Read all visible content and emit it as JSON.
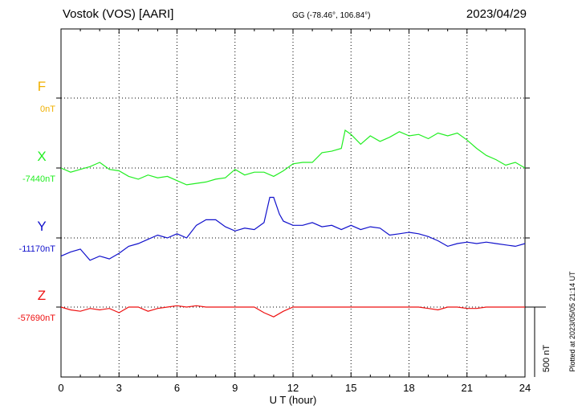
{
  "header": {
    "station": "Vostok (VOS)  [AARI]",
    "coords": "GG (-78.46°, 106.84°)",
    "date": "2023/04/29"
  },
  "side_note": "Plotted at 2023/05/05 21:14 UT",
  "scale_label": "500 nT",
  "chart_data": {
    "type": "line",
    "title": "",
    "xlabel": "U T (hour)",
    "xlim": [
      0,
      24
    ],
    "xticks": [
      "0",
      "3",
      "6",
      "9",
      "12",
      "15",
      "18",
      "21",
      "24"
    ],
    "scale_bar_nT": 500,
    "series": [
      {
        "name": "F",
        "baseline_label": "0nT",
        "color": "#f0b000",
        "values": []
      },
      {
        "name": "X",
        "baseline_label": "-7440nT",
        "color": "#22ee22",
        "values": [
          [
            0,
            -7440
          ],
          [
            0.5,
            -7470
          ],
          [
            1,
            -7450
          ],
          [
            1.5,
            -7430
          ],
          [
            2,
            -7400
          ],
          [
            2.5,
            -7450
          ],
          [
            3,
            -7460
          ],
          [
            3.5,
            -7500
          ],
          [
            4,
            -7520
          ],
          [
            4.5,
            -7490
          ],
          [
            5,
            -7510
          ],
          [
            5.5,
            -7500
          ],
          [
            6,
            -7530
          ],
          [
            6.5,
            -7560
          ],
          [
            7,
            -7550
          ],
          [
            7.5,
            -7540
          ],
          [
            8,
            -7520
          ],
          [
            8.5,
            -7510
          ],
          [
            9,
            -7450
          ],
          [
            9.5,
            -7490
          ],
          [
            10,
            -7470
          ],
          [
            10.5,
            -7470
          ],
          [
            11,
            -7500
          ],
          [
            11.5,
            -7460
          ],
          [
            12,
            -7410
          ],
          [
            12.5,
            -7400
          ],
          [
            13,
            -7400
          ],
          [
            13.5,
            -7330
          ],
          [
            14,
            -7320
          ],
          [
            14.5,
            -7300
          ],
          [
            14.7,
            -7170
          ],
          [
            15,
            -7200
          ],
          [
            15.5,
            -7270
          ],
          [
            16,
            -7210
          ],
          [
            16.5,
            -7250
          ],
          [
            17,
            -7220
          ],
          [
            17.5,
            -7180
          ],
          [
            18,
            -7210
          ],
          [
            18.5,
            -7200
          ],
          [
            19,
            -7230
          ],
          [
            19.5,
            -7190
          ],
          [
            20,
            -7210
          ],
          [
            20.5,
            -7190
          ],
          [
            21,
            -7240
          ],
          [
            21.5,
            -7300
          ],
          [
            22,
            -7350
          ],
          [
            22.5,
            -7380
          ],
          [
            23,
            -7420
          ],
          [
            23.5,
            -7400
          ],
          [
            24,
            -7440
          ]
        ]
      },
      {
        "name": "Y",
        "baseline_label": "-11170nT",
        "color": "#1111cc",
        "values": [
          [
            0,
            -11300
          ],
          [
            0.5,
            -11270
          ],
          [
            1,
            -11250
          ],
          [
            1.5,
            -11330
          ],
          [
            2,
            -11300
          ],
          [
            2.5,
            -11320
          ],
          [
            3,
            -11280
          ],
          [
            3.5,
            -11230
          ],
          [
            4,
            -11210
          ],
          [
            4.5,
            -11180
          ],
          [
            5,
            -11150
          ],
          [
            5.5,
            -11170
          ],
          [
            6,
            -11140
          ],
          [
            6.5,
            -11170
          ],
          [
            7,
            -11080
          ],
          [
            7.5,
            -11040
          ],
          [
            8,
            -11040
          ],
          [
            8.5,
            -11090
          ],
          [
            9,
            -11120
          ],
          [
            9.5,
            -11100
          ],
          [
            10,
            -11110
          ],
          [
            10.5,
            -11060
          ],
          [
            10.8,
            -10880
          ],
          [
            11,
            -10880
          ],
          [
            11.3,
            -11000
          ],
          [
            11.5,
            -11050
          ],
          [
            12,
            -11080
          ],
          [
            12.5,
            -11080
          ],
          [
            13,
            -11060
          ],
          [
            13.5,
            -11090
          ],
          [
            14,
            -11080
          ],
          [
            14.5,
            -11110
          ],
          [
            15,
            -11080
          ],
          [
            15.5,
            -11110
          ],
          [
            16,
            -11090
          ],
          [
            16.5,
            -11100
          ],
          [
            17,
            -11150
          ],
          [
            17.5,
            -11140
          ],
          [
            18,
            -11130
          ],
          [
            18.5,
            -11140
          ],
          [
            19,
            -11160
          ],
          [
            19.5,
            -11190
          ],
          [
            20,
            -11230
          ],
          [
            20.5,
            -11210
          ],
          [
            21,
            -11200
          ],
          [
            21.5,
            -11210
          ],
          [
            22,
            -11200
          ],
          [
            22.5,
            -11210
          ],
          [
            23,
            -11220
          ],
          [
            23.5,
            -11230
          ],
          [
            24,
            -11210
          ]
        ]
      },
      {
        "name": "Z",
        "baseline_label": "-57690nT",
        "color": "#ee1111",
        "values": [
          [
            0,
            -57690
          ],
          [
            0.5,
            -57710
          ],
          [
            1,
            -57720
          ],
          [
            1.5,
            -57700
          ],
          [
            2,
            -57710
          ],
          [
            2.5,
            -57700
          ],
          [
            3,
            -57730
          ],
          [
            3.5,
            -57690
          ],
          [
            4,
            -57690
          ],
          [
            4.5,
            -57720
          ],
          [
            5,
            -57700
          ],
          [
            5.5,
            -57690
          ],
          [
            6,
            -57680
          ],
          [
            6.5,
            -57690
          ],
          [
            7,
            -57680
          ],
          [
            7.5,
            -57690
          ],
          [
            8,
            -57690
          ],
          [
            8.5,
            -57690
          ],
          [
            9,
            -57690
          ],
          [
            9.5,
            -57690
          ],
          [
            10,
            -57690
          ],
          [
            10.5,
            -57730
          ],
          [
            11,
            -57760
          ],
          [
            11.5,
            -57720
          ],
          [
            12,
            -57690
          ],
          [
            12.5,
            -57690
          ],
          [
            13,
            -57690
          ],
          [
            13.5,
            -57690
          ],
          [
            14,
            -57690
          ],
          [
            14.5,
            -57690
          ],
          [
            15,
            -57690
          ],
          [
            15.5,
            -57690
          ],
          [
            16,
            -57690
          ],
          [
            16.5,
            -57690
          ],
          [
            17,
            -57690
          ],
          [
            17.5,
            -57690
          ],
          [
            18,
            -57690
          ],
          [
            18.5,
            -57690
          ],
          [
            19,
            -57700
          ],
          [
            19.5,
            -57710
          ],
          [
            20,
            -57690
          ],
          [
            20.5,
            -57690
          ],
          [
            21,
            -57700
          ],
          [
            21.5,
            -57700
          ],
          [
            22,
            -57690
          ],
          [
            22.5,
            -57690
          ],
          [
            23,
            -57690
          ],
          [
            23.5,
            -57690
          ],
          [
            24,
            -57690
          ]
        ]
      }
    ]
  }
}
